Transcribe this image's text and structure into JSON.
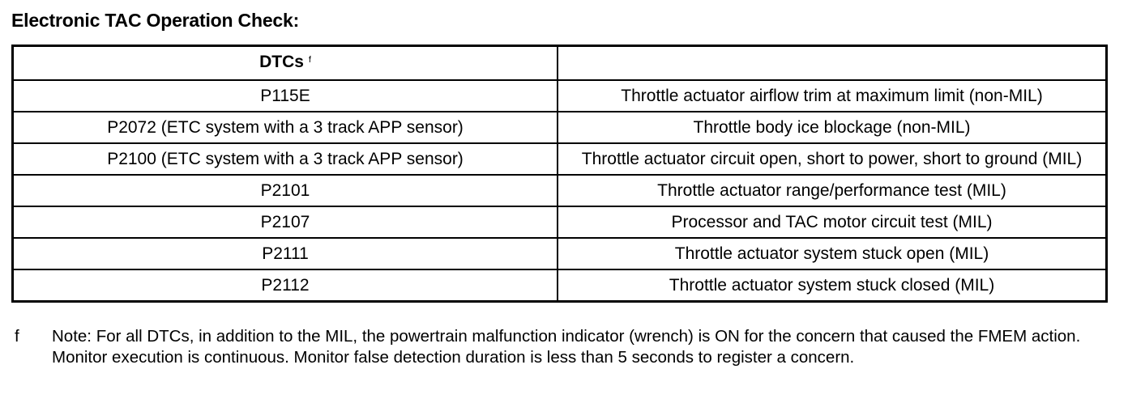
{
  "title": "Electronic TAC Operation Check:",
  "table": {
    "headers": [
      "DTCs",
      ""
    ],
    "header_footnote_mark": "f",
    "rows": [
      [
        "P115E",
        "Throttle actuator airflow trim at maximum limit (non-MIL)"
      ],
      [
        "P2072 (ETC system with a 3 track APP sensor)",
        "Throttle body ice blockage (non-MIL)"
      ],
      [
        "P2100 (ETC system with a 3 track APP sensor)",
        "Throttle actuator circuit open, short to power, short to ground (MIL)"
      ],
      [
        "P2101",
        "Throttle actuator range/performance test (MIL)"
      ],
      [
        "P2107",
        "Processor and TAC motor circuit test (MIL)"
      ],
      [
        "P2111",
        "Throttle actuator system stuck open (MIL)"
      ],
      [
        "P2112",
        "Throttle actuator system stuck closed (MIL)"
      ]
    ]
  },
  "footnote": {
    "mark": "f",
    "text": "Note: For all DTCs, in addition to the MIL, the powertrain malfunction indicator (wrench) is ON for the concern that caused the FMEM action. Monitor execution is continuous. Monitor false detection duration is less than 5 seconds to register a concern."
  }
}
